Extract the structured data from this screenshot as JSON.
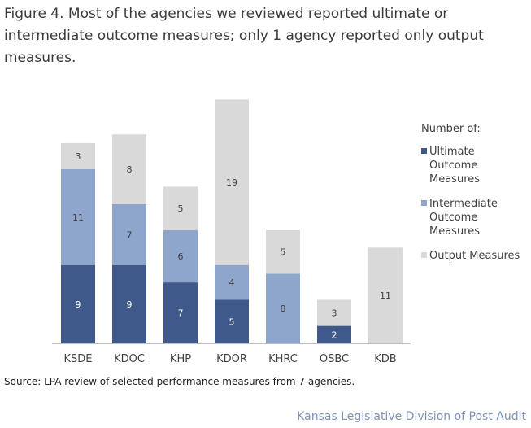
{
  "figure": {
    "title": "Figure 4. Most of the agencies we reviewed reported ultimate or intermediate outcome measures; only 1 agency reported only output measures.",
    "source": "Source: LPA review of selected performance measures from 7 agencies.",
    "footer": "Kansas Legislative Division of Post Audit"
  },
  "chart_data": {
    "type": "bar",
    "stacked": true,
    "categories": [
      "KSDE",
      "KDOC",
      "KHP",
      "KDOR",
      "KHRC",
      "OSBC",
      "KDB"
    ],
    "series": [
      {
        "name": "Ultimate Outcome Measures",
        "values": [
          9,
          9,
          7,
          5,
          0,
          2,
          0
        ],
        "color": "#3f5a8a",
        "label_color": "#ffffff"
      },
      {
        "name": "Intermediate Outcome Measures",
        "values": [
          11,
          7,
          6,
          4,
          8,
          0,
          0
        ],
        "color": "#8fa6cc",
        "label_color": "#404040"
      },
      {
        "name": "Output Measures",
        "values": [
          3,
          8,
          5,
          19,
          5,
          3,
          11
        ],
        "color": "#d9d9d9",
        "label_color": "#404040"
      }
    ],
    "legend_title": "Number of:",
    "legend_labels": [
      [
        "Ultimate",
        "Outcome",
        "Measures"
      ],
      [
        "Intermediate",
        "Outcome",
        "Measures"
      ],
      [
        "Output Measures"
      ]
    ],
    "legend_position": "right",
    "ylim": [
      0,
      28
    ],
    "grid": false,
    "axis_color": "#bfbfbf"
  }
}
